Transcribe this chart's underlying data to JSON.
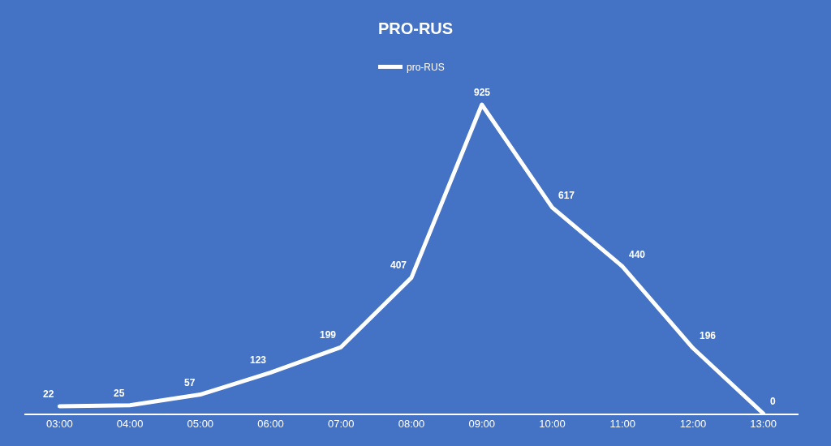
{
  "chart_data": {
    "type": "line",
    "title": "PRO-RUS",
    "categories": [
      "03:00",
      "04:00",
      "05:00",
      "06:00",
      "07:00",
      "08:00",
      "09:00",
      "10:00",
      "11:00",
      "12:00",
      "13:00"
    ],
    "series": [
      {
        "name": "pro-RUS",
        "color": "#ffffff",
        "values": [
          22,
          25,
          57,
          123,
          199,
          407,
          925,
          617,
          440,
          196,
          0
        ]
      }
    ],
    "data_labels": true,
    "legend": "top",
    "grid": false,
    "marker": "none",
    "line_style": "solid"
  }
}
